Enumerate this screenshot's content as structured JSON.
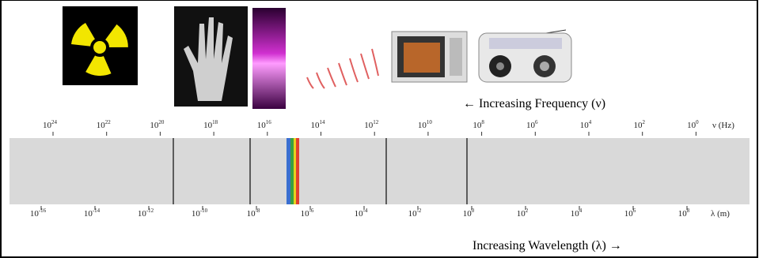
{
  "frequency_axis": {
    "unit": "ν (Hz)",
    "ticks": [
      {
        "base": "10",
        "exponent": "24"
      },
      {
        "base": "10",
        "exponent": "22"
      },
      {
        "base": "10",
        "exponent": "20"
      },
      {
        "base": "10",
        "exponent": "18"
      },
      {
        "base": "10",
        "exponent": "16"
      },
      {
        "base": "10",
        "exponent": "14"
      },
      {
        "base": "10",
        "exponent": "12"
      },
      {
        "base": "10",
        "exponent": "10"
      },
      {
        "base": "10",
        "exponent": "8"
      },
      {
        "base": "10",
        "exponent": "6"
      },
      {
        "base": "10",
        "exponent": "4"
      },
      {
        "base": "10",
        "exponent": "2"
      },
      {
        "base": "10",
        "exponent": "0"
      }
    ]
  },
  "wavelength_axis": {
    "unit": "λ (m)",
    "ticks": [
      {
        "base": "10",
        "exponent": "-16"
      },
      {
        "base": "10",
        "exponent": "-14"
      },
      {
        "base": "10",
        "exponent": "-12"
      },
      {
        "base": "10",
        "exponent": "-10"
      },
      {
        "base": "10",
        "exponent": "-8"
      },
      {
        "base": "10",
        "exponent": "-6"
      },
      {
        "base": "10",
        "exponent": "-4"
      },
      {
        "base": "10",
        "exponent": "-2"
      },
      {
        "base": "10",
        "exponent": "0"
      },
      {
        "base": "10",
        "exponent": "2"
      },
      {
        "base": "10",
        "exponent": "4"
      },
      {
        "base": "10",
        "exponent": "6"
      },
      {
        "base": "10",
        "exponent": "8"
      }
    ]
  },
  "captions": {
    "frequency": "← Increasing Frequency (ν)",
    "wavelength": "Increasing Wavelength (λ) →"
  }
}
